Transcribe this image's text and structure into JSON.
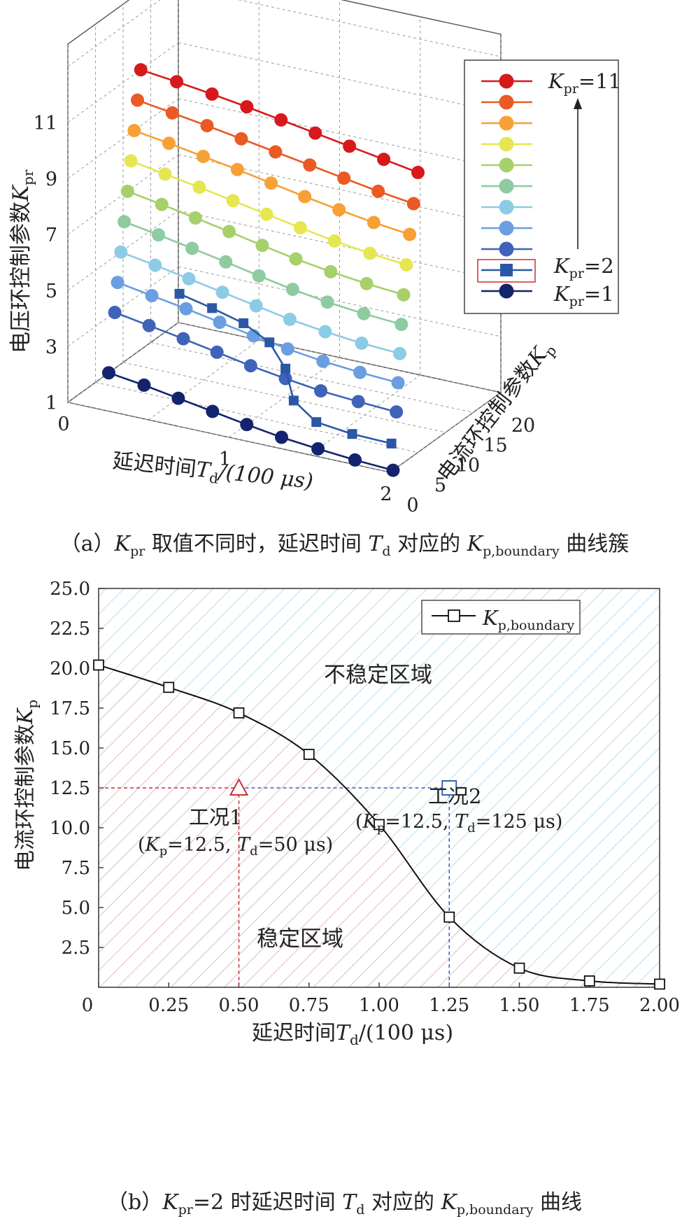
{
  "chart_data": [
    {
      "type": "line",
      "title": "",
      "caption": {
        "prefix": "（a）",
        "k": "K",
        "k_sub": "pr",
        "text1": " 取值不同时，延迟时间 ",
        "t": "T",
        "t_sub": "d",
        "text2": " 对应的 ",
        "kp": "K",
        "kp_sub": "p,boundary",
        "text3": " 曲线簇"
      },
      "xlabel": {
        "main": "延迟时间",
        "var": "T",
        "sub": "d",
        "unit": "/(100 μs)"
      },
      "ylabel": {
        "main": "电流环控制参数",
        "var": "K",
        "sub": "p"
      },
      "zlabel": {
        "main": "电压环控制参数",
        "var": "K",
        "sub": "pr"
      },
      "x_ticks": [
        "0",
        "1",
        "2"
      ],
      "y_ticks": [
        "0",
        "5",
        "10",
        "15",
        "20"
      ],
      "z_ticks": [
        "1",
        "3",
        "5",
        "7",
        "9",
        "11"
      ],
      "xlim": [
        0,
        2
      ],
      "ylim": [
        0,
        20
      ],
      "zlim": [
        1,
        11
      ],
      "x": [
        0.0,
        0.25,
        0.5,
        0.75,
        1.0,
        1.25,
        1.5,
        1.75,
        2.0
      ],
      "series": [
        {
          "kpr": 11,
          "color": "#d7191c",
          "marker": "circle",
          "values": [
            13.2,
            12.4,
            11.5,
            10.5,
            9.4,
            8.3,
            7.2,
            6.1,
            5.0
          ]
        },
        {
          "kpr": 10,
          "color": "#ea5a22",
          "marker": "circle",
          "values": [
            12.6,
            11.6,
            10.6,
            9.5,
            8.4,
            7.3,
            6.2,
            5.1,
            4.2
          ]
        },
        {
          "kpr": 9,
          "color": "#f7a035",
          "marker": "circle",
          "values": [
            12.0,
            11.0,
            9.9,
            8.8,
            7.6,
            6.4,
            5.3,
            4.3,
            3.5
          ]
        },
        {
          "kpr": 8,
          "color": "#e6e650",
          "marker": "circle",
          "values": [
            11.4,
            10.3,
            9.2,
            8.0,
            6.8,
            5.6,
            4.5,
            3.6,
            2.9
          ]
        },
        {
          "kpr": 7,
          "color": "#a6d06a",
          "marker": "circle",
          "values": [
            10.8,
            9.7,
            8.5,
            7.3,
            6.0,
            4.8,
            3.8,
            3.0,
            2.4
          ]
        },
        {
          "kpr": 6,
          "color": "#8ecba0",
          "marker": "circle",
          "values": [
            10.2,
            9.1,
            7.9,
            6.7,
            5.4,
            4.2,
            3.2,
            2.5,
            2.0
          ]
        },
        {
          "kpr": 5,
          "color": "#8ccbe6",
          "marker": "circle",
          "values": [
            9.6,
            8.5,
            7.3,
            6.1,
            4.9,
            3.7,
            2.8,
            2.1,
            1.7
          ]
        },
        {
          "kpr": 4,
          "color": "#6a9ee0",
          "marker": "circle",
          "values": [
            9.0,
            7.9,
            6.8,
            5.6,
            4.4,
            3.3,
            2.4,
            1.8,
            1.4
          ]
        },
        {
          "kpr": 3,
          "color": "#3f63b8",
          "marker": "circle",
          "values": [
            8.5,
            7.4,
            6.3,
            5.1,
            3.9,
            2.9,
            2.0,
            1.5,
            1.1
          ]
        },
        {
          "kpr": 2,
          "color": "#2b58a6",
          "marker": "square",
          "values": [
            20.2,
            18.8,
            17.2,
            14.6,
            10.2,
            4.4,
            1.2,
            0.4,
            0.2
          ]
        },
        {
          "kpr": 1,
          "color": "#13236e",
          "marker": "circle",
          "values": [
            7.4,
            6.5,
            5.4,
            4.3,
            3.2,
            2.2,
            1.5,
            0.9,
            0.5
          ]
        }
      ],
      "legend": {
        "placement": "right",
        "top_label": {
          "k": "K",
          "sub": "pr",
          "val": "=11"
        },
        "mid_label": {
          "k": "K",
          "sub": "pr",
          "val": "=2"
        },
        "bot_label": {
          "k": "K",
          "sub": "pr",
          "val": "=1"
        }
      },
      "grid": true
    },
    {
      "type": "line",
      "title": "",
      "caption": {
        "prefix": "（b）",
        "k": "K",
        "k_sub": "pr",
        "text1": "=2 时延迟时间 ",
        "t": "T",
        "t_sub": "d",
        "text2": " 对应的 ",
        "kp": "K",
        "kp_sub": "p,boundary",
        "text3": " 曲线"
      },
      "xlabel": {
        "main": "延迟时间",
        "var": "T",
        "sub": "d",
        "unit": "/(100 μs)"
      },
      "ylabel": {
        "main": "电流环控制参数",
        "var": "K",
        "sub": "p"
      },
      "x_ticks": [
        "0",
        "0.25",
        "0.50",
        "0.75",
        "1.00",
        "1.25",
        "1.50",
        "1.75",
        "2.00"
      ],
      "y_ticks": [
        "2.5",
        "5.0",
        "7.5",
        "10.0",
        "12.5",
        "15.0",
        "17.5",
        "20.0",
        "22.5",
        "25.0"
      ],
      "xlim": [
        0,
        2
      ],
      "ylim": [
        0,
        25
      ],
      "series": [
        {
          "name": {
            "k": "K",
            "sub": "p,boundary"
          },
          "x": [
            0.0,
            0.25,
            0.5,
            0.75,
            1.0,
            1.25,
            1.5,
            1.75,
            2.0
          ],
          "values": [
            20.2,
            18.8,
            17.2,
            14.6,
            10.2,
            4.4,
            1.2,
            0.4,
            0.2
          ],
          "marker": "square",
          "color": "#111111"
        }
      ],
      "regions": {
        "unstable": {
          "label": "不稳定区域",
          "color": "#9fcde3"
        },
        "stable": {
          "label": "稳定区域",
          "color": "#f2b8b8"
        }
      },
      "cases": [
        {
          "label": "工况1",
          "x": 0.5,
          "y": 12.5,
          "marker": "triangle",
          "color": "#c8323a",
          "detail": {
            "open": "(",
            "k": "K",
            "k_sub": "p",
            "kv": "=12.5, ",
            "t": "T",
            "t_sub": "d",
            "tv": "=50 μs)"
          }
        },
        {
          "label": "工况2",
          "x": 1.25,
          "y": 12.5,
          "marker": "square",
          "color": "#3a62b5",
          "detail": {
            "open": "(",
            "k": "K",
            "k_sub": "p",
            "kv": "=12.5, ",
            "t": "T",
            "t_sub": "d",
            "tv": "=125 μs)"
          }
        }
      ],
      "legend": {
        "placement": "top-right"
      },
      "grid": false
    }
  ]
}
